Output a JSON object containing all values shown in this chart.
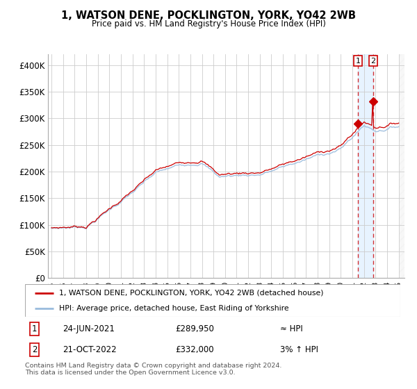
{
  "title": "1, WATSON DENE, POCKLINGTON, YORK, YO42 2WB",
  "subtitle": "Price paid vs. HM Land Registry's House Price Index (HPI)",
  "ylim": [
    0,
    420000
  ],
  "yticks": [
    0,
    50000,
    100000,
    150000,
    200000,
    250000,
    300000,
    350000,
    400000
  ],
  "ytick_labels": [
    "£0",
    "£50K",
    "£100K",
    "£150K",
    "£200K",
    "£250K",
    "£300K",
    "£350K",
    "£400K"
  ],
  "legend_line1": "1, WATSON DENE, POCKLINGTON, YORK, YO42 2WB (detached house)",
  "legend_line2": "HPI: Average price, detached house, East Riding of Yorkshire",
  "annotation1_label": "1",
  "annotation1_date": "24-JUN-2021",
  "annotation1_price": "£289,950",
  "annotation1_hpi": "≈ HPI",
  "annotation2_label": "2",
  "annotation2_date": "21-OCT-2022",
  "annotation2_price": "£332,000",
  "annotation2_hpi": "3% ↑ HPI",
  "footer": "Contains HM Land Registry data © Crown copyright and database right 2024.\nThis data is licensed under the Open Government Licence v3.0.",
  "property_color": "#cc0000",
  "hpi_color": "#99bbdd",
  "bg_color": "#ffffff",
  "grid_color": "#cccccc",
  "sale1_year": 2021.47,
  "sale1_price": 289950,
  "sale2_year": 2022.79,
  "sale2_price": 332000
}
